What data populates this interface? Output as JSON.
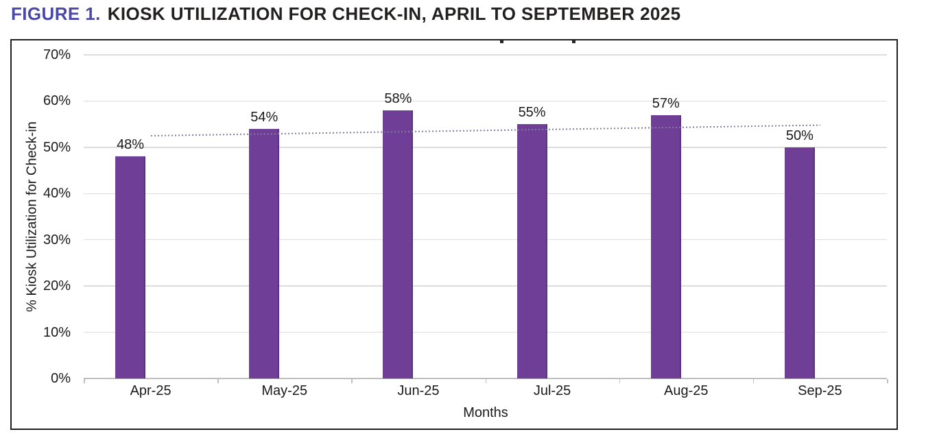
{
  "figure_header": {
    "label": "FIGURE 1.",
    "title": "KIOSK UTILIZATION FOR CHECK-IN, APRIL TO SEPTEMBER 2025"
  },
  "chart_data": {
    "type": "bar",
    "categories": [
      "Apr-25",
      "May-25",
      "Jun-25",
      "Jul-25",
      "Aug-25",
      "Sep-25"
    ],
    "values": [
      48,
      54,
      58,
      55,
      57,
      50
    ],
    "data_labels": [
      "48%",
      "54%",
      "58%",
      "55%",
      "57%",
      "50%"
    ],
    "xlabel": "Months",
    "ylabel": "% Kiosk Utilization for Check-in",
    "ylim": [
      0,
      70
    ],
    "ytick_step": 10,
    "ytick_labels": [
      "0%",
      "10%",
      "20%",
      "30%",
      "40%",
      "50%",
      "60%",
      "70%"
    ],
    "grid": true,
    "legend_position": "none",
    "trendline": {
      "style": "dotted",
      "start_pct": 52.5,
      "end_pct": 54.8
    },
    "colors": {
      "bar": "#6f3e96",
      "bar_edge": "#5b327d",
      "grid": "#dcdcdc",
      "axis": "#bfbfbf",
      "trend": "#837a9e",
      "figure_label_accent": "#4a49a8",
      "figure_title_text": "#232020",
      "chart_border": "#1f1f1f"
    }
  }
}
